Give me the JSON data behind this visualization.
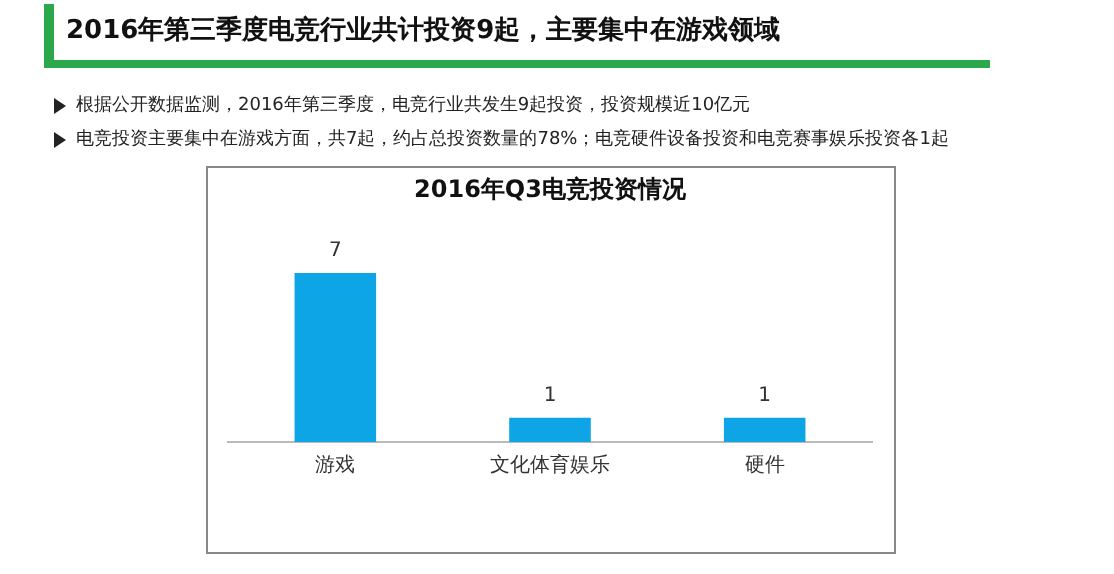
{
  "chart_data": {
    "type": "bar",
    "title": "2016年Q3电竞投资情况",
    "categories": [
      "游戏",
      "文化体育娱乐",
      "硬件"
    ],
    "values": [
      7,
      1,
      1
    ],
    "color": "#0ea5e6",
    "data_labels": true,
    "grid": false,
    "legend": false,
    "annotations": [
      "2016年第三季度电竞行业共计投资9起，主要集中在游戏领域",
      "根据公开数据监测，2016年第三季度，电竞行业共发生9起投资，投资规模近10亿元",
      "电竞投资主要集中在游戏方面，共7起，约占总投资数量的78%；电竞硬件设备投资和电竞赛事娱乐投资各1起"
    ]
  }
}
